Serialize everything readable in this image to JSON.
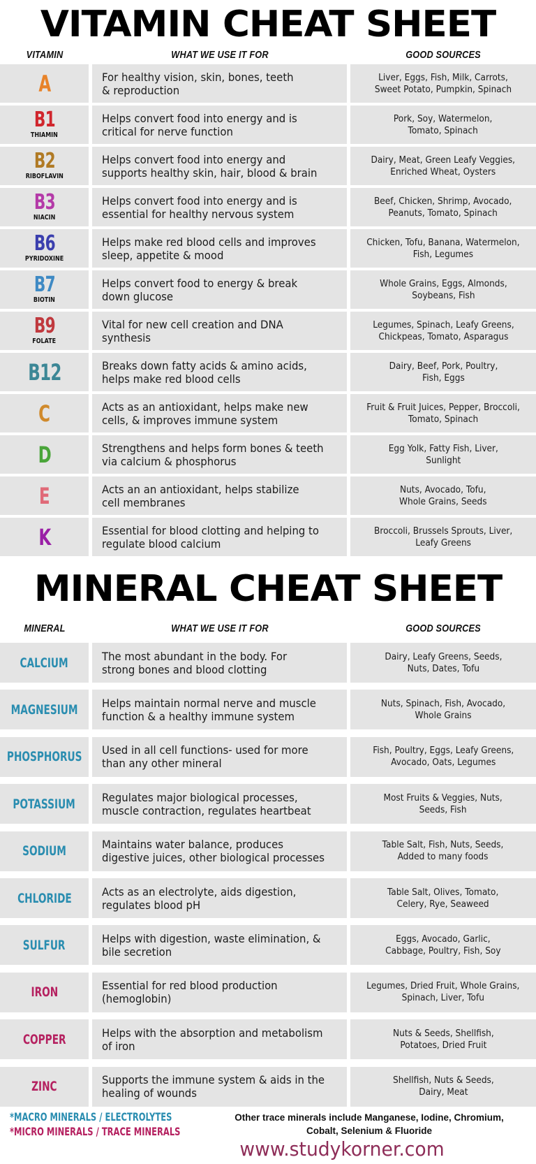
{
  "vitamin_sheet": {
    "title": "VITAMIN CHEAT SHEET",
    "headers": {
      "col1": "VITAMIN",
      "col2": "WHAT WE USE IT FOR",
      "col3": "GOOD SOURCES"
    },
    "rows": [
      {
        "code": "A",
        "name": "",
        "color": "#e8832a",
        "use": [
          "For healthy vision, skin, bones, teeth",
          "& reproduction"
        ],
        "sources": [
          "Liver, Eggs, Fish, Milk, Carrots,",
          "Sweet Potato, Pumpkin, Spinach"
        ]
      },
      {
        "code": "B1",
        "name": "THIAMIN",
        "color": "#d0262d",
        "use": [
          "Helps convert food into energy and is",
          "critical for nerve function"
        ],
        "sources": [
          "Pork, Soy, Watermelon,",
          "Tomato, Spinach"
        ]
      },
      {
        "code": "B2",
        "name": "RIBOFLAVIN",
        "color": "#b07a24",
        "use": [
          "Helps convert food into energy and",
          "supports healthy skin, hair, blood & brain"
        ],
        "sources": [
          "Dairy, Meat, Green Leafy Veggies,",
          "Enriched Wheat, Oysters"
        ]
      },
      {
        "code": "B3",
        "name": "NIACIN",
        "color": "#b43aa8",
        "use": [
          "Helps convert food into energy and is",
          "essential for healthy nervous system"
        ],
        "sources": [
          "Beef, Chicken, Shrimp, Avocado,",
          "Peanuts, Tomato, Spinach"
        ]
      },
      {
        "code": "B6",
        "name": "PYRIDOXINE",
        "color": "#3b3fae",
        "use": [
          "Helps make red blood cells and improves",
          "sleep, appetite & mood"
        ],
        "sources": [
          "Chicken, Tofu, Banana, Watermelon,",
          "Fish, Legumes"
        ]
      },
      {
        "code": "B7",
        "name": "BIOTIN",
        "color": "#3f8ac4",
        "use": [
          "Helps convert food to energy & break",
          "down glucose"
        ],
        "sources": [
          "Whole Grains, Eggs, Almonds,",
          "Soybeans, Fish"
        ]
      },
      {
        "code": "B9",
        "name": "FOLATE",
        "color": "#c0393e",
        "use": [
          "Vital for new cell creation and DNA",
          "synthesis"
        ],
        "sources": [
          "Legumes, Spinach, Leafy Greens,",
          "Chickpeas, Tomato, Asparagus"
        ]
      },
      {
        "code": "B12",
        "name": "",
        "color": "#3c8796",
        "use": [
          "Breaks down fatty acids & amino acids,",
          "helps make red blood cells"
        ],
        "sources": [
          "Dairy, Beef, Pork, Poultry,",
          "Fish, Eggs"
        ]
      },
      {
        "code": "C",
        "name": "",
        "color": "#d08a2c",
        "use": [
          "Acts as an antioxidant, helps make new",
          "cells, & improves immune system"
        ],
        "sources": [
          "Fruit & Fruit Juices, Pepper, Broccoli,",
          "Tomato, Spinach"
        ]
      },
      {
        "code": "D",
        "name": "",
        "color": "#4aa53a",
        "use": [
          "Strengthens and helps form bones & teeth",
          "via calcium & phosphorus"
        ],
        "sources": [
          "Egg Yolk, Fatty Fish, Liver,",
          "Sunlight"
        ]
      },
      {
        "code": "E",
        "name": "",
        "color": "#e06a78",
        "use": [
          "Acts an an antioxidant, helps stabilize",
          "cell membranes"
        ],
        "sources": [
          "Nuts, Avocado, Tofu,",
          "Whole Grains, Seeds"
        ]
      },
      {
        "code": "K",
        "name": "",
        "color": "#9a1fa6",
        "use": [
          "Essential for blood clotting and helping to",
          "regulate blood calcium"
        ],
        "sources": [
          "Broccoli, Brussels Sprouts, Liver,",
          "Leafy Greens"
        ]
      }
    ]
  },
  "mineral_sheet": {
    "title": "MINERAL CHEAT SHEET",
    "headers": {
      "col1": "MINERAL",
      "col2": "WHAT WE USE IT FOR",
      "col3": "GOOD SOURCES"
    },
    "rows": [
      {
        "name": "CALCIUM",
        "color": "#2a8db0",
        "use": [
          "The most abundant in the body. For",
          "strong bones and blood clotting"
        ],
        "sources": [
          "Dairy, Leafy Greens, Seeds,",
          "Nuts, Dates, Tofu"
        ]
      },
      {
        "name": "MAGNESIUM",
        "color": "#2a8db0",
        "use": [
          "Helps maintain normal nerve and muscle",
          "function & a healthy immune system"
        ],
        "sources": [
          "Nuts, Spinach, Fish, Avocado,",
          "Whole Grains"
        ]
      },
      {
        "name": "PHOSPHORUS",
        "color": "#2a8db0",
        "use": [
          "Used in all cell functions- used for more",
          "than any other mineral"
        ],
        "sources": [
          "Fish, Poultry, Eggs, Leafy Greens,",
          "Avocado, Oats, Legumes"
        ]
      },
      {
        "name": "POTASSIUM",
        "color": "#2a8db0",
        "use": [
          "Regulates major biological processes,",
          "muscle contraction, regulates heartbeat"
        ],
        "sources": [
          "Most Fruits & Veggies, Nuts,",
          "Seeds, Fish"
        ]
      },
      {
        "name": "SODIUM",
        "color": "#2a8db0",
        "use": [
          "Maintains water balance, produces",
          "digestive juices, other biological processes"
        ],
        "sources": [
          "Table Salt, Fish, Nuts, Seeds,",
          "Added to many foods"
        ]
      },
      {
        "name": "CHLORIDE",
        "color": "#2a8db0",
        "use": [
          "Acts as an electrolyte, aids digestion,",
          "regulates blood pH"
        ],
        "sources": [
          "Table Salt, Olives, Tomato,",
          "Celery, Rye, Seaweed"
        ]
      },
      {
        "name": "SULFUR",
        "color": "#2a8db0",
        "use": [
          "Helps with digestion, waste elimination, &",
          "bile secretion"
        ],
        "sources": [
          "Eggs, Avocado, Garlic,",
          "Cabbage, Poultry, Fish, Soy"
        ]
      },
      {
        "name": "IRON",
        "color": "#b52160",
        "use": [
          "Essential for red blood production",
          "(hemoglobin)"
        ],
        "sources": [
          "Legumes, Dried Fruit, Whole Grains,",
          "Spinach, Liver, Tofu"
        ]
      },
      {
        "name": "COPPER",
        "color": "#b52160",
        "use": [
          "Helps with the absorption and metabolism",
          "of iron"
        ],
        "sources": [
          "Nuts & Seeds, Shellfish,",
          "Potatoes, Dried Fruit"
        ]
      },
      {
        "name": "ZINC",
        "color": "#b52160",
        "use": [
          "Supports the immune system & aids in the",
          "healing of wounds"
        ],
        "sources": [
          "Shellfish, Nuts & Seeds,",
          "Dairy, Meat"
        ]
      }
    ]
  },
  "footer": {
    "legend": [
      {
        "label": "*MACRO MINERALS / ELECTROLYTES",
        "color": "#2a8db0"
      },
      {
        "label": "*MICRO MINERALS / TRACE MINERALS",
        "color": "#b52160"
      }
    ],
    "note": [
      "Other trace minerals include Manganese, Iodine, Chromium,",
      "Cobalt, Selenium & Fluoride"
    ],
    "website": "www.studykorner.com",
    "website_color": "#8e2d58"
  }
}
